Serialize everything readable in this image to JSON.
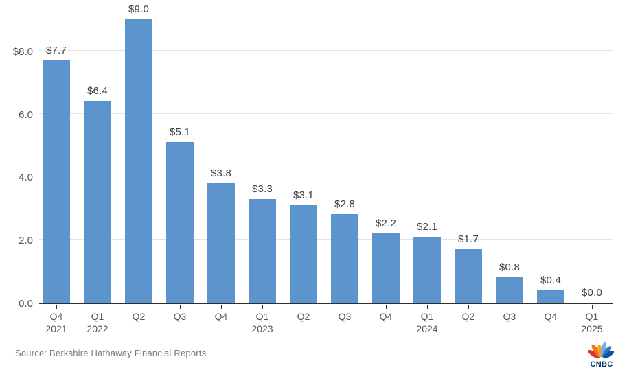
{
  "chart_data": {
    "type": "bar",
    "title": "",
    "categories": [
      {
        "quarter": "Q4",
        "year": "2021"
      },
      {
        "quarter": "Q1",
        "year": "2022"
      },
      {
        "quarter": "Q2",
        "year": ""
      },
      {
        "quarter": "Q3",
        "year": ""
      },
      {
        "quarter": "Q4",
        "year": ""
      },
      {
        "quarter": "Q1",
        "year": "2023"
      },
      {
        "quarter": "Q2",
        "year": ""
      },
      {
        "quarter": "Q3",
        "year": ""
      },
      {
        "quarter": "Q4",
        "year": ""
      },
      {
        "quarter": "Q1",
        "year": "2024"
      },
      {
        "quarter": "Q2",
        "year": ""
      },
      {
        "quarter": "Q3",
        "year": ""
      },
      {
        "quarter": "Q4",
        "year": ""
      },
      {
        "quarter": "Q1",
        "year": "2025"
      }
    ],
    "values": [
      7.7,
      6.4,
      9.0,
      5.1,
      3.8,
      3.3,
      3.1,
      2.8,
      2.2,
      2.1,
      1.7,
      0.8,
      0.4,
      0.0
    ],
    "bar_labels": [
      "$7.7",
      "$6.4",
      "$9.0",
      "$5.1",
      "$3.8",
      "$3.3",
      "$3.1",
      "$2.8",
      "$2.2",
      "$2.1",
      "$1.7",
      "$0.8",
      "$0.4",
      "$0.0"
    ],
    "y_axis": {
      "ticks": [
        {
          "value": 8,
          "label": "$8.0"
        },
        {
          "value": 6,
          "label": "6.0"
        },
        {
          "value": 4,
          "label": "4.0"
        },
        {
          "value": 2,
          "label": "2.0"
        },
        {
          "value": 0,
          "label": "0.0"
        }
      ],
      "range": [
        0,
        9.65
      ]
    },
    "grid": true,
    "legend": false,
    "bar_color": "#5C94CD",
    "xlabel": "",
    "ylabel": ""
  },
  "footer": {
    "source": "Source: Berkshire Hathaway Financial Reports",
    "logo_text": "CNBC",
    "logo_text_color": "#02376b",
    "logo_feather_colors": [
      "#d9362b",
      "#f3701f",
      "#f9a11b",
      "#6fb2e3",
      "#2e77bc",
      "#15509e"
    ]
  },
  "colors": {
    "bar": "#5C94CD",
    "gridline": "#e3e3e3",
    "axis_line": "#2e2e2e",
    "bar_label_text": "#414042",
    "axis_label_text": "#55565a",
    "source_text": "#77787b"
  }
}
